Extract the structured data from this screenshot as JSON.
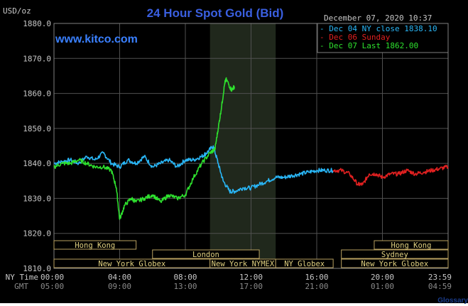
{
  "header": {
    "unit": "USD/oz",
    "title": "24 Hour Spot Gold (Bid)",
    "timestamp": "December 07, 2020 10:37",
    "brand": "www.kitco.com"
  },
  "time_rows": {
    "ny_label": "NY Time",
    "gmt_label": "GMT",
    "ny": [
      "00:00",
      "04:00",
      "08:00",
      "12:00",
      "16:00",
      "20:00",
      "23:59"
    ],
    "gmt": [
      "05:00",
      "09:00",
      "13:00",
      "17:00",
      "21:00",
      "01:00",
      "04:59"
    ]
  },
  "sessions": [
    {
      "label": "Hong Kong",
      "row": 0
    },
    {
      "label": "London",
      "row": 1
    },
    {
      "label": "New York Globex",
      "row": 2
    },
    {
      "label": "New York NYMEX",
      "row": 2
    },
    {
      "label": "NY Globex",
      "row": 2
    },
    {
      "label": "Hong Kong",
      "row": 0
    },
    {
      "label": "Sydney",
      "row": 1
    },
    {
      "label": "New York Globex",
      "row": 2
    }
  ],
  "colors": {
    "background": "#000000",
    "grid": "#505050",
    "title": "#3a5fe0",
    "brand": "#3a80ff",
    "axis_text": "#c8c8c8",
    "dec04": "#29b6f6",
    "dec06": "#e02020",
    "dec07": "#2ee02e",
    "nymex_shade": "#20281c",
    "session_border": "#b8a060",
    "session_text": "#e0d080"
  },
  "footer": {
    "glossary_link": "Glossary"
  },
  "chart_data": {
    "type": "line",
    "title": "24 Hour Spot Gold (Bid)",
    "ylabel": "USD/oz",
    "ylim": [
      1810,
      1880
    ],
    "yticks": [
      "1880.0",
      "1870.0",
      "1860.0",
      "1850.0",
      "1840.0",
      "1830.0",
      "1820.0",
      "1810.0"
    ],
    "xlim": [
      0,
      24
    ],
    "x_unit": "NY time (hours)",
    "nymex_hours": [
      9.5,
      13.5
    ],
    "grid": true,
    "legend_position": "top-right",
    "series": [
      {
        "name": "Dec 04 NY close 1838.10",
        "color": "#29b6f6",
        "x": [
          0,
          0.5,
          1,
          1.5,
          2,
          2.5,
          3,
          3.5,
          4,
          4.5,
          5,
          5.5,
          6,
          6.5,
          7,
          7.5,
          8,
          8.5,
          9,
          9.3,
          9.7,
          10,
          10.3,
          10.7,
          11,
          11.5,
          12,
          12.5,
          13,
          13.5,
          14,
          14.5,
          15,
          15.5,
          16,
          16.5,
          17
        ],
        "y": [
          1840,
          1840.5,
          1841,
          1840,
          1842,
          1841,
          1843,
          1840,
          1839,
          1841,
          1840,
          1842,
          1839,
          1840,
          1841,
          1839,
          1841,
          1841,
          1842,
          1843,
          1845,
          1840,
          1835,
          1832,
          1832,
          1833,
          1833,
          1834,
          1835,
          1836,
          1836,
          1836.5,
          1837,
          1837.5,
          1838,
          1838,
          1838
        ]
      },
      {
        "name": "Dec 06 Sunday",
        "color": "#e02020",
        "x": [
          17,
          17.5,
          18,
          18.5,
          18.8,
          19.2,
          19.6,
          20,
          20.5,
          21,
          21.5,
          22,
          22.5,
          23,
          23.5,
          23.99
        ],
        "y": [
          1838,
          1838,
          1837,
          1834,
          1834,
          1837,
          1837,
          1836,
          1837,
          1837,
          1838,
          1837,
          1837.5,
          1838,
          1838.5,
          1839
        ]
      },
      {
        "name": "Dec 07 Last 1862.00",
        "color": "#2ee02e",
        "x": [
          0,
          0.5,
          1,
          1.5,
          2,
          2.5,
          3,
          3.5,
          3.8,
          4,
          4.3,
          4.7,
          5,
          5.5,
          6,
          6.5,
          7,
          7.5,
          8,
          8.5,
          9,
          9.5,
          9.8,
          10,
          10.2,
          10.4,
          10.5,
          10.8,
          11
        ],
        "y": [
          1839,
          1840,
          1840,
          1841,
          1840,
          1839,
          1839,
          1838,
          1833,
          1824,
          1828,
          1830,
          1829,
          1830,
          1831,
          1829,
          1831,
          1830,
          1831,
          1836,
          1840,
          1843,
          1844,
          1850,
          1856,
          1863,
          1864,
          1861,
          1862
        ]
      }
    ]
  }
}
